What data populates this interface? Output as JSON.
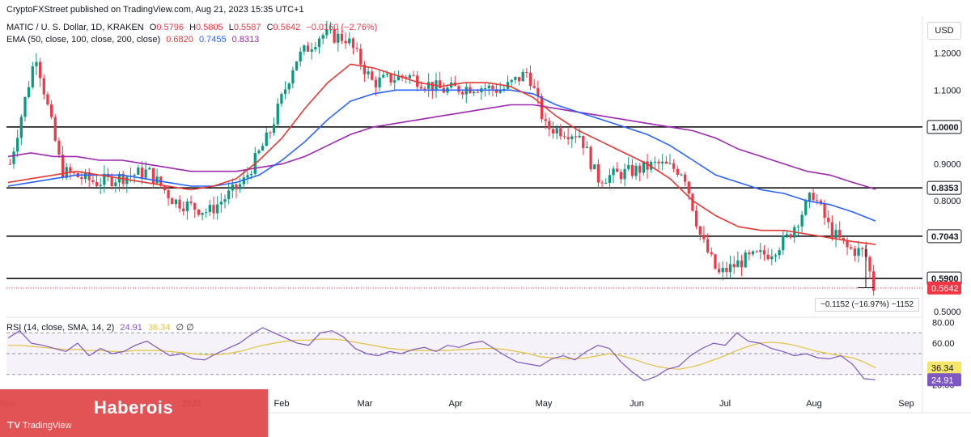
{
  "header": {
    "publisher": "CryptoFXStreet published on TradingView.com, Aug 21, 2023 15:35 UTC+1",
    "symbol": "MATIC / U. S. Dollar, 1D, KRAKEN",
    "o_label": "O",
    "o": "0.5796",
    "h_label": "H",
    "h": "0.5805",
    "l_label": "L",
    "l": "0.5587",
    "c_label": "C",
    "c": "0.5642",
    "change": "−0.0160 (−2.76%)",
    "ema_label": "EMA (50, close, 100, close, 200, close)",
    "ema50": "0.6820",
    "ema100": "0.7455",
    "ema200": "0.8313",
    "rsi_label": "RSI (14, close, SMA, 14, 2)",
    "rsi": "24.91",
    "rsi_sma": "36.34",
    "rsi_extra": "∅ ∅"
  },
  "currency_button": "USD",
  "banner": {
    "text": "Haberois",
    "logo": "TradingView"
  },
  "measure": {
    "text": "−0.1152 (−16.97%) −1152"
  },
  "colors": {
    "up": "#089981",
    "down": "#f23645",
    "ema50": "#e53935",
    "ema100": "#2962ff",
    "ema200": "#9c27b0",
    "rsi": "#7e57c2",
    "rsi_sma": "#e1c340"
  },
  "chart_data": {
    "type": "candlestick",
    "x_ticks": [
      "Nov",
      "2023",
      "Feb",
      "Mar",
      "Apr",
      "May",
      "Jun",
      "Jul",
      "Aug",
      "Sep"
    ],
    "y_ticks": [
      "1.2000",
      "1.1000",
      "0.9000",
      "0.8000",
      "0.5000"
    ],
    "ylim": [
      0.485,
      1.3
    ],
    "h_levels": [
      {
        "value": 1.0,
        "label": "1.0000"
      },
      {
        "value": 0.8353,
        "label": "0.8353"
      },
      {
        "value": 0.7043,
        "label": "0.7043"
      },
      {
        "value": 0.59,
        "label": "0.5900"
      }
    ],
    "last_price": {
      "value": 0.5642,
      "label": "0.5642"
    },
    "ohlc": [],
    "ema50_path": [
      0.85,
      0.86,
      0.87,
      0.88,
      0.87,
      0.86,
      0.85,
      0.84,
      0.83,
      0.84,
      0.86,
      0.91,
      0.97,
      1.05,
      1.12,
      1.17,
      1.16,
      1.14,
      1.12,
      1.11,
      1.12,
      1.12,
      1.11,
      1.08,
      1.03,
      0.99,
      0.96,
      0.93,
      0.9,
      0.86,
      0.8,
      0.76,
      0.73,
      0.72,
      0.72,
      0.71,
      0.7,
      0.69,
      0.682
    ],
    "ema100_path": [
      0.84,
      0.85,
      0.86,
      0.87,
      0.87,
      0.87,
      0.86,
      0.85,
      0.84,
      0.84,
      0.85,
      0.87,
      0.91,
      0.96,
      1.02,
      1.07,
      1.09,
      1.1,
      1.1,
      1.1,
      1.1,
      1.1,
      1.1,
      1.09,
      1.06,
      1.04,
      1.02,
      1.0,
      0.98,
      0.95,
      0.91,
      0.87,
      0.85,
      0.83,
      0.82,
      0.8,
      0.79,
      0.77,
      0.7455
    ],
    "ema200_path": [
      0.92,
      0.93,
      0.92,
      0.92,
      0.91,
      0.91,
      0.9,
      0.89,
      0.88,
      0.88,
      0.88,
      0.89,
      0.9,
      0.92,
      0.95,
      0.98,
      1.0,
      1.01,
      1.02,
      1.03,
      1.04,
      1.05,
      1.06,
      1.06,
      1.05,
      1.04,
      1.03,
      1.02,
      1.01,
      1.0,
      0.99,
      0.97,
      0.94,
      0.92,
      0.9,
      0.88,
      0.87,
      0.85,
      0.8313
    ],
    "rsi": {
      "y_ticks": [
        "80.00",
        "60.00",
        "20.00"
      ],
      "ylim": [
        15,
        85
      ],
      "bands": [
        70,
        50,
        30
      ],
      "last_rsi": {
        "value": 24.91,
        "label": "24.91"
      },
      "last_sma": {
        "value": 36.34,
        "label": "36.34"
      },
      "values": [
        65,
        72,
        60,
        58,
        55,
        52,
        60,
        48,
        55,
        50,
        52,
        58,
        62,
        55,
        48,
        50,
        45,
        44,
        50,
        55,
        60,
        68,
        75,
        70,
        65,
        60,
        58,
        70,
        72,
        66,
        55,
        50,
        48,
        52,
        50,
        54,
        56,
        52,
        58,
        56,
        60,
        62,
        55,
        48,
        42,
        40,
        38,
        45,
        48,
        44,
        52,
        58,
        55,
        42,
        32,
        24,
        28,
        35,
        38,
        48,
        55,
        60,
        58,
        70,
        62,
        60,
        55,
        52,
        48,
        50,
        46,
        45,
        48,
        40,
        26,
        24.91
      ],
      "sma": [
        58,
        58,
        57,
        56,
        55,
        54,
        54,
        53,
        53,
        52,
        52,
        53,
        53,
        53,
        52,
        51,
        50,
        49,
        49,
        50,
        52,
        55,
        58,
        60,
        62,
        63,
        63,
        64,
        64,
        63,
        61,
        59,
        57,
        55,
        54,
        53,
        53,
        53,
        53,
        54,
        54,
        55,
        55,
        54,
        52,
        50,
        47,
        46,
        45,
        45,
        46,
        48,
        50,
        48,
        45,
        41,
        38,
        36,
        35,
        37,
        40,
        44,
        48,
        53,
        57,
        60,
        61,
        60,
        58,
        55,
        52,
        50,
        48,
        46,
        42,
        36.34
      ]
    }
  }
}
